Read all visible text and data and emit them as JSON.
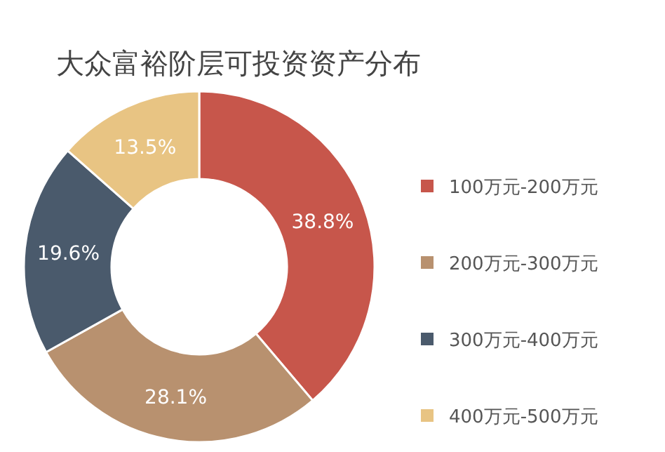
{
  "chart_data": {
    "type": "donut",
    "title": "大众富裕阶层可投资资产分布",
    "categories": [
      "100万元-200万元",
      "200万元-300万元",
      "300万元-400万元",
      "400万元-500万元"
    ],
    "values": [
      38.8,
      28.1,
      19.6,
      13.5
    ],
    "colors": [
      "#c7564b",
      "#b8916f",
      "#4a5a6c",
      "#e8c483"
    ],
    "value_labels": [
      "38.8%",
      "28.1%",
      "19.6%",
      "13.5%"
    ],
    "legend": "right"
  }
}
